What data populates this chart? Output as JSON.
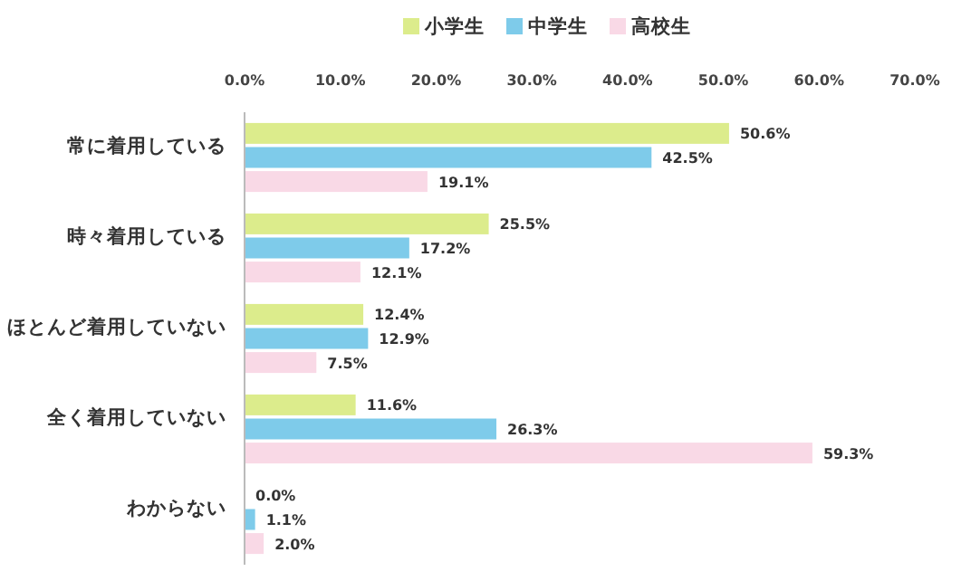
{
  "chart_data": {
    "type": "bar",
    "orientation": "horizontal",
    "legend": "top",
    "categories": [
      "常に着用している",
      "時々着用している",
      "ほとんど着用していない",
      "全く着用していない",
      "わからない"
    ],
    "series": [
      {
        "name": "小学生",
        "color": "#dcec8c",
        "values": [
          50.6,
          25.5,
          12.4,
          11.6,
          0.0
        ],
        "value_labels": [
          "50.6%",
          "25.5%",
          "12.4%",
          "11.6%",
          "0.0%"
        ]
      },
      {
        "name": "中学生",
        "color": "#7ecbea",
        "values": [
          42.5,
          17.2,
          12.9,
          26.3,
          1.1
        ],
        "value_labels": [
          "42.5%",
          "17.2%",
          "12.9%",
          "26.3%",
          "1.1%"
        ]
      },
      {
        "name": "高校生",
        "color": "#f9d9e6",
        "values": [
          19.1,
          12.1,
          7.5,
          59.3,
          2.0
        ],
        "value_labels": [
          "19.1%",
          "12.1%",
          "7.5%",
          "59.3%",
          "2.0%"
        ]
      }
    ],
    "xlim": [
      0,
      70
    ],
    "xticks": [
      {
        "value": 0,
        "label": "0.0%"
      },
      {
        "value": 10,
        "label": "10.0%"
      },
      {
        "value": 20,
        "label": "20.0%"
      },
      {
        "value": 30,
        "label": "30.0%"
      },
      {
        "value": 40,
        "label": "40.0%"
      },
      {
        "value": 50,
        "label": "50.0%"
      },
      {
        "value": 60,
        "label": "60.0%"
      },
      {
        "value": 70,
        "label": "70.0%"
      }
    ]
  }
}
